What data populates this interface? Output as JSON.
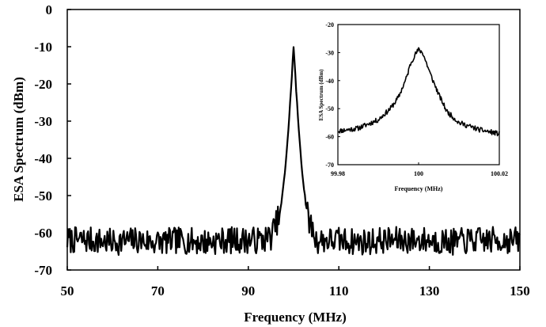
{
  "chart_data": [
    {
      "type": "line",
      "xlabel": "Frequency (MHz)",
      "ylabel": "ESA Spectrum (dBm)",
      "xlim": [
        50,
        150
      ],
      "ylim": [
        -70,
        0
      ],
      "x_ticks": [
        50,
        70,
        90,
        110,
        130,
        150
      ],
      "y_ticks": [
        0,
        -10,
        -20,
        -30,
        -40,
        -50,
        -60,
        -70
      ],
      "x_tick_labels": [
        "50",
        "70",
        "90",
        "110",
        "130",
        "150"
      ],
      "y_tick_labels": [
        "0",
        "-10",
        "-20",
        "-30",
        "-40",
        "-50",
        "-60",
        "-70"
      ],
      "grid": false,
      "color": "#000000",
      "series": [
        {
          "x": [
            50,
            55,
            60,
            65,
            70,
            75,
            80,
            85,
            90,
            93,
            95,
            97,
            98,
            99,
            99.5,
            100,
            100.5,
            101,
            102,
            103,
            105,
            110,
            115,
            120,
            125,
            130,
            135,
            140,
            145,
            150
          ],
          "y": [
            -62,
            -62,
            -62.5,
            -62,
            -62.5,
            -62,
            -62.5,
            -62,
            -62,
            -62,
            -61,
            -55,
            -45,
            -30,
            -20,
            -10,
            -20,
            -30,
            -45,
            -55,
            -62,
            -62,
            -62.5,
            -62,
            -62,
            -62,
            -62.5,
            -62,
            -62,
            -62
          ]
        }
      ]
    },
    {
      "type": "line",
      "xlabel": "Frequency (MHz)",
      "ylabel": "ESA Spectrum (dBm)",
      "xlim": [
        99.98,
        100.02
      ],
      "ylim": [
        -70,
        -20
      ],
      "x_ticks": [
        99.98,
        100,
        100.02
      ],
      "y_ticks": [
        -20,
        -30,
        -40,
        -50,
        -60,
        -70
      ],
      "x_tick_labels": [
        "99.98",
        "100",
        "100.02"
      ],
      "y_tick_labels": [
        "-20",
        "-30",
        "-40",
        "-50",
        "-60",
        "-70"
      ],
      "grid": false,
      "color": "#000000",
      "series": [
        {
          "x": [
            99.98,
            99.985,
            99.99,
            99.993,
            99.995,
            99.997,
            99.998,
            99.999,
            100,
            100.001,
            100.002,
            100.003,
            100.005,
            100.007,
            100.01,
            100.015,
            100.02
          ],
          "y": [
            -58,
            -57,
            -54,
            -50,
            -46,
            -39,
            -34,
            -31,
            -29,
            -30,
            -34,
            -38,
            -45,
            -51,
            -55,
            -57.5,
            -59
          ]
        }
      ]
    }
  ]
}
